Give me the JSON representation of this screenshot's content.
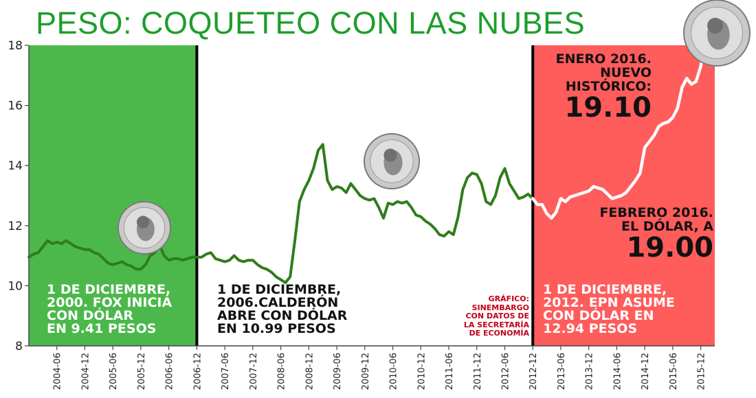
{
  "title": "PESO: COQUETEO CON LAS NUBES",
  "eras": [
    {
      "lines": [
        "1 DE DICIEMBRE,",
        "2000. FOX INICIÁ",
        "CON DÓLAR",
        "EN 9.41 PESOS"
      ],
      "color": "#4cb84c",
      "text_color": "#ffffff"
    },
    {
      "lines": [
        "1 DE DICIEMBRE,",
        "2006.CALDERÓN",
        "ABRE CON DÓLAR",
        "EN 10.99 PESOS"
      ],
      "color": "#ffffff",
      "text_color": "#111111"
    },
    {
      "lines": [
        "1 DE DICIEMBRE,",
        "2012. EPN ASUME",
        "CON DÓLAR EN",
        "12.94 PESOS"
      ],
      "color": "#ff5c5c",
      "text_color": "#ffffff"
    }
  ],
  "credit": [
    "GRÁFICO:",
    "SINEMBARGO",
    "CON DATOS DE",
    "LA SECRETARÍA",
    "DE ECONOMÍA"
  ],
  "annotations": {
    "enero": {
      "lines": [
        "ENERO 2016.",
        "NUEVO",
        "HISTÓRICO:"
      ],
      "value": "19.10"
    },
    "febrero": {
      "lines": [
        "FEBRERO 2016.",
        "EL DÓLAR, A"
      ],
      "value": "19.00"
    }
  },
  "coin_icon": "quarter-dollar-coin",
  "chart_data": {
    "type": "line",
    "ylim": [
      8,
      18
    ],
    "yticks": [
      8,
      10,
      12,
      14,
      16,
      18
    ],
    "xlim": [
      "2003-12",
      "2016-03"
    ],
    "xticks": [
      "2004-06",
      "2004-12",
      "2005-06",
      "2005-12",
      "2006-06",
      "2006-12",
      "2007-06",
      "2007-12",
      "2008-06",
      "2008-12",
      "2009-06",
      "2009-12",
      "2010-06",
      "2010-12",
      "2011-06",
      "2011-12",
      "2012-06",
      "2012-12",
      "2013-06",
      "2013-12",
      "2014-06",
      "2014-12",
      "2015-06",
      "2015-12"
    ],
    "grid": false,
    "series": [
      {
        "values": [
          [
            "2003-12",
            10.95
          ],
          [
            "2004-01",
            11.05
          ],
          [
            "2004-02",
            11.1
          ],
          [
            "2004-03",
            11.3
          ],
          [
            "2004-04",
            11.5
          ],
          [
            "2004-05",
            11.4
          ],
          [
            "2004-06",
            11.45
          ],
          [
            "2004-07",
            11.4
          ],
          [
            "2004-08",
            11.5
          ],
          [
            "2004-09",
            11.4
          ],
          [
            "2004-10",
            11.3
          ],
          [
            "2004-11",
            11.25
          ],
          [
            "2004-12",
            11.2
          ],
          [
            "2005-01",
            11.2
          ],
          [
            "2005-02",
            11.1
          ],
          [
            "2005-03",
            11.05
          ],
          [
            "2005-04",
            10.9
          ],
          [
            "2005-05",
            10.75
          ],
          [
            "2005-06",
            10.7
          ],
          [
            "2005-07",
            10.75
          ],
          [
            "2005-08",
            10.8
          ],
          [
            "2005-09",
            10.7
          ],
          [
            "2005-10",
            10.65
          ],
          [
            "2005-11",
            10.55
          ],
          [
            "2005-12",
            10.55
          ],
          [
            "2006-01",
            10.7
          ],
          [
            "2006-02",
            11.0
          ],
          [
            "2006-03",
            11.1
          ],
          [
            "2006-04",
            11.35
          ],
          [
            "2006-05",
            11.0
          ],
          [
            "2006-06",
            10.85
          ],
          [
            "2006-07",
            10.9
          ],
          [
            "2006-08",
            10.9
          ],
          [
            "2006-09",
            10.85
          ],
          [
            "2006-10",
            10.9
          ],
          [
            "2006-11",
            10.95
          ],
          [
            "2006-12",
            10.95
          ],
          [
            "2007-01",
            10.95
          ],
          [
            "2007-02",
            11.05
          ],
          [
            "2007-03",
            11.1
          ],
          [
            "2007-04",
            10.9
          ],
          [
            "2007-05",
            10.85
          ],
          [
            "2007-06",
            10.8
          ],
          [
            "2007-07",
            10.85
          ],
          [
            "2007-08",
            11.0
          ],
          [
            "2007-09",
            10.85
          ],
          [
            "2007-10",
            10.8
          ],
          [
            "2007-11",
            10.85
          ],
          [
            "2007-12",
            10.85
          ],
          [
            "2008-01",
            10.7
          ],
          [
            "2008-02",
            10.6
          ],
          [
            "2008-03",
            10.55
          ],
          [
            "2008-04",
            10.45
          ],
          [
            "2008-05",
            10.3
          ],
          [
            "2008-06",
            10.2
          ],
          [
            "2008-07",
            10.1
          ],
          [
            "2008-08",
            10.3
          ],
          [
            "2008-09",
            11.5
          ],
          [
            "2008-10",
            12.8
          ],
          [
            "2008-11",
            13.2
          ],
          [
            "2008-12",
            13.5
          ],
          [
            "2009-01",
            13.9
          ],
          [
            "2009-02",
            14.5
          ],
          [
            "2009-03",
            14.7
          ],
          [
            "2009-04",
            13.5
          ],
          [
            "2009-05",
            13.2
          ],
          [
            "2009-06",
            13.3
          ],
          [
            "2009-07",
            13.25
          ],
          [
            "2009-08",
            13.1
          ],
          [
            "2009-09",
            13.4
          ],
          [
            "2009-10",
            13.2
          ],
          [
            "2009-11",
            13.0
          ],
          [
            "2009-12",
            12.9
          ],
          [
            "2010-01",
            12.85
          ],
          [
            "2010-02",
            12.9
          ],
          [
            "2010-03",
            12.6
          ],
          [
            "2010-04",
            12.25
          ],
          [
            "2010-05",
            12.75
          ],
          [
            "2010-06",
            12.7
          ],
          [
            "2010-07",
            12.8
          ],
          [
            "2010-08",
            12.75
          ],
          [
            "2010-09",
            12.8
          ],
          [
            "2010-10",
            12.6
          ],
          [
            "2010-11",
            12.35
          ],
          [
            "2010-12",
            12.3
          ],
          [
            "2011-01",
            12.15
          ],
          [
            "2011-02",
            12.05
          ],
          [
            "2011-03",
            11.9
          ],
          [
            "2011-04",
            11.7
          ],
          [
            "2011-05",
            11.65
          ],
          [
            "2011-06",
            11.8
          ],
          [
            "2011-07",
            11.7
          ],
          [
            "2011-08",
            12.3
          ],
          [
            "2011-09",
            13.2
          ],
          [
            "2011-10",
            13.6
          ],
          [
            "2011-11",
            13.75
          ],
          [
            "2011-12",
            13.7
          ],
          [
            "2012-01",
            13.4
          ],
          [
            "2012-02",
            12.8
          ],
          [
            "2012-03",
            12.7
          ],
          [
            "2012-04",
            13.0
          ],
          [
            "2012-05",
            13.6
          ],
          [
            "2012-06",
            13.9
          ],
          [
            "2012-07",
            13.4
          ],
          [
            "2012-08",
            13.15
          ],
          [
            "2012-09",
            12.9
          ],
          [
            "2012-10",
            12.95
          ],
          [
            "2012-11",
            13.05
          ],
          [
            "2012-12",
            12.9
          ],
          [
            "2013-01",
            12.7
          ],
          [
            "2013-02",
            12.7
          ],
          [
            "2013-03",
            12.4
          ],
          [
            "2013-04",
            12.25
          ],
          [
            "2013-05",
            12.45
          ],
          [
            "2013-06",
            12.9
          ],
          [
            "2013-07",
            12.8
          ],
          [
            "2013-08",
            12.95
          ],
          [
            "2013-09",
            13.0
          ],
          [
            "2013-10",
            13.05
          ],
          [
            "2013-11",
            13.1
          ],
          [
            "2013-12",
            13.15
          ],
          [
            "2014-01",
            13.3
          ],
          [
            "2014-02",
            13.25
          ],
          [
            "2014-03",
            13.2
          ],
          [
            "2014-04",
            13.05
          ],
          [
            "2014-05",
            12.9
          ],
          [
            "2014-06",
            12.95
          ],
          [
            "2014-07",
            13.0
          ],
          [
            "2014-08",
            13.1
          ],
          [
            "2014-09",
            13.3
          ],
          [
            "2014-10",
            13.5
          ],
          [
            "2014-11",
            13.75
          ],
          [
            "2014-12",
            14.6
          ],
          [
            "2015-01",
            14.8
          ],
          [
            "2015-02",
            15.0
          ],
          [
            "2015-03",
            15.3
          ],
          [
            "2015-04",
            15.4
          ],
          [
            "2015-05",
            15.45
          ],
          [
            "2015-06",
            15.6
          ],
          [
            "2015-07",
            15.9
          ],
          [
            "2015-08",
            16.6
          ],
          [
            "2015-09",
            16.9
          ],
          [
            "2015-10",
            16.7
          ],
          [
            "2015-11",
            16.8
          ],
          [
            "2015-12",
            17.3
          ],
          [
            "2016-01",
            18.2
          ],
          [
            "2016-02",
            18.3
          ]
        ]
      }
    ]
  }
}
